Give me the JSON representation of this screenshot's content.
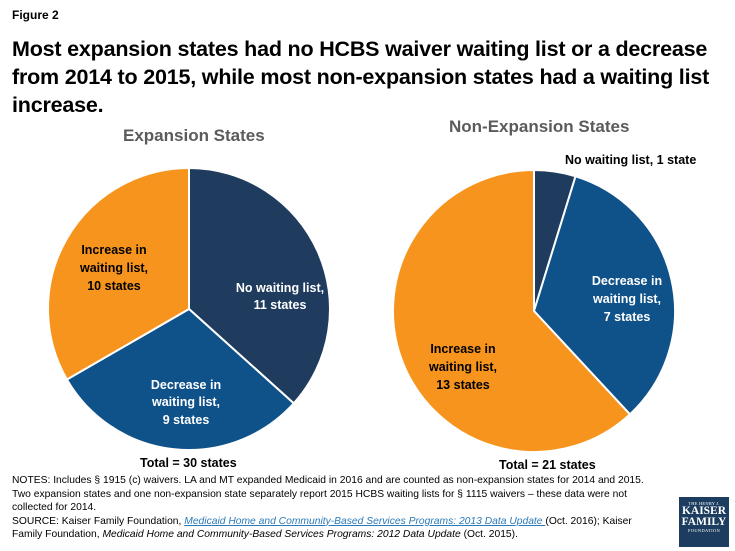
{
  "figure_label": "Figure 2",
  "headline": "Most expansion states had no HCBS waiver waiting list or a decrease from 2014 to 2015, while most non-expansion states had a waiting list increase.",
  "chart_data": [
    {
      "type": "pie",
      "title": "Expansion States",
      "total_label": "Total = 30 states",
      "slices": [
        {
          "label": "No waiting list,",
          "value_label": "11 states",
          "value": 11,
          "color": "#1f3b5e"
        },
        {
          "label": "Decrease in waiting list,",
          "value_label": "9 states",
          "value": 9,
          "color": "#0f5189"
        },
        {
          "label": "Increase in waiting list,",
          "value_label": "10 states",
          "value": 10,
          "color": "#f7941e"
        }
      ]
    },
    {
      "type": "pie",
      "title": "Non-Expansion States",
      "total_label": "Total = 21 states",
      "slices": [
        {
          "label": "No waiting list, 1 state",
          "value": 1,
          "color": "#1f3b5e"
        },
        {
          "label": "Decrease in waiting list,",
          "value_label": "7 states",
          "value": 7,
          "color": "#0f5189"
        },
        {
          "label": "Increase in waiting list,",
          "value_label": "13 states",
          "value": 13,
          "color": "#f7941e"
        }
      ]
    }
  ],
  "notes": {
    "line1": "NOTES:  Includes § 1915 (c) waivers.  LA and MT expanded Medicaid in 2016 and are counted as non-expansion states for 2014 and 2015.  Two expansion states and one non-expansion  state separately report 2015 HCBS waiting lists for § 1115 waivers – these data were not collected for 2014.",
    "source_prefix": "SOURCE: Kaiser Family Foundation, ",
    "source_link": "Medicaid Home and Community-Based Services Programs:   2013 Data Update ",
    "source_mid": "(Oct. 2016); Kaiser Family Foundation, ",
    "source_title2": "Medicaid Home and Community-Based Services Programs:  2012 Data Update",
    "source_end": " (Oct. 2015)."
  },
  "logo": {
    "line1": "THE HENRY J.",
    "line2": "KAISER",
    "line3": "FAMILY",
    "line4": "FOUNDATION"
  }
}
